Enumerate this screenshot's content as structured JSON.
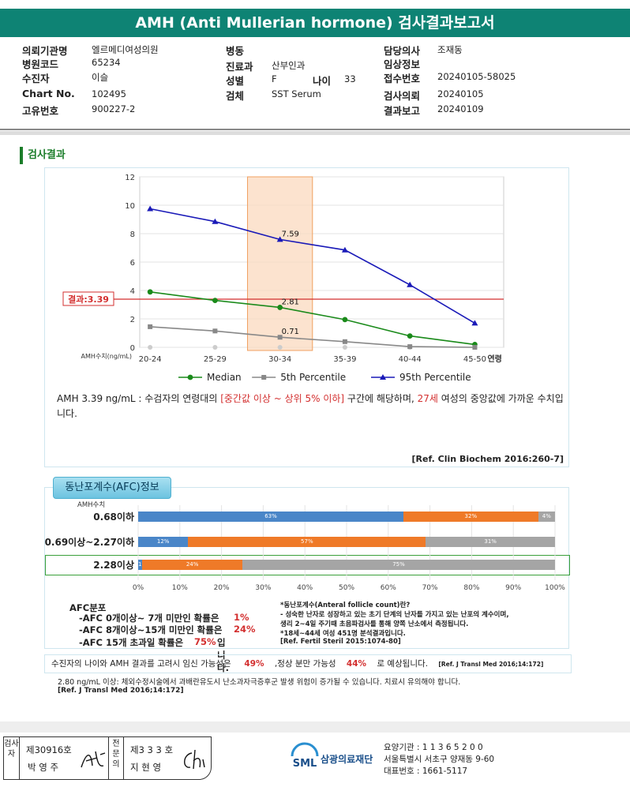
{
  "header": {
    "title": "AMH (Anti Mullerian hormone) 검사결과보고서"
  },
  "info": {
    "col1": [
      {
        "label": "의뢰기관명",
        "value": "엘르메디여성의원"
      },
      {
        "label": "병원코드",
        "value": "65234"
      },
      {
        "label": "수진자",
        "value": "이슬"
      },
      {
        "label": "Chart No.",
        "value": "102495"
      },
      {
        "label": "고유번호",
        "value": "900227-2"
      }
    ],
    "col2": [
      {
        "label": "병동",
        "value": ""
      },
      {
        "label": "진료과",
        "value": "산부인과"
      },
      {
        "label": "성별",
        "value": "F"
      },
      {
        "label": "검체",
        "value": "SST Serum"
      }
    ],
    "age": {
      "label": "나이",
      "value": "33"
    },
    "col3": [
      {
        "label": "담당의사",
        "value": "조재동"
      },
      {
        "label": "임상정보",
        "value": ""
      },
      {
        "label": "접수번호",
        "value": "20240105-58025"
      },
      {
        "label": "검사의뢰",
        "value": "20240105"
      },
      {
        "label": "결과보고",
        "value": "20240109"
      }
    ]
  },
  "section": {
    "title": "검사결과"
  },
  "chart_data": {
    "type": "line",
    "categories": [
      "20-24",
      "25-29",
      "30-34",
      "35-39",
      "40-44",
      "45-50"
    ],
    "x_unit_label": "AMH수치(ng/mL)",
    "x_end_label": "연령",
    "ylim": [
      0,
      12
    ],
    "yticks": [
      "0",
      "2",
      "4",
      "6",
      "8",
      "10",
      "12"
    ],
    "highlight_category": "30-34",
    "result": {
      "label": "결과:3.39",
      "value": 3.39
    },
    "series": [
      {
        "name": "Median",
        "color": "#1a8a1a",
        "marker": "circle",
        "values": [
          3.9,
          3.3,
          2.81,
          1.95,
          0.8,
          0.2
        ]
      },
      {
        "name": "5th Percentile",
        "color": "#888888",
        "marker": "square",
        "values": [
          1.45,
          1.15,
          0.71,
          0.4,
          0.05,
          0.0
        ]
      },
      {
        "name": "95th Percentile",
        "color": "#1a1ab8",
        "marker": "triangle",
        "values": [
          9.75,
          8.85,
          7.59,
          6.85,
          4.4,
          1.7
        ]
      }
    ],
    "point_labels": [
      {
        "series": 0,
        "index": 2,
        "text": "2.81"
      },
      {
        "series": 1,
        "index": 2,
        "text": "0.71"
      },
      {
        "series": 2,
        "index": 2,
        "text": "7.59"
      }
    ]
  },
  "comment": {
    "part1": "AMH  3.39 ng/mL : 수검자의 연령대의 ",
    "range": "[중간값 이상 ~ 상위 5% 이하]",
    "part2": "  구간에 해당하며, ",
    "age": "27세",
    "part3": " 여성의 중앙값에 가까운 수치입니다.",
    "ref": "[Ref. Clin Biochem 2016:260-7]"
  },
  "afc": {
    "tab": "동난포계수(AFC)정보",
    "head": "AMH수치",
    "colors": {
      "blue": "#4a86c8",
      "orange": "#ef7a28",
      "gray": "#a5a5a5"
    },
    "rows": [
      {
        "label": "0.68이하",
        "segs": [
          63,
          32,
          4
        ],
        "texts": [
          "63%",
          "32%",
          "4%"
        ]
      },
      {
        "label": "0.69이상~2.27이하",
        "segs": [
          12,
          57,
          31
        ],
        "texts": [
          "12%",
          "57%",
          "31%"
        ]
      },
      {
        "label": "2.28이상",
        "segs": [
          1,
          24,
          75
        ],
        "texts": [
          "1%",
          "24%",
          "75%"
        ]
      }
    ],
    "axis": [
      "0%",
      "10%",
      "20%",
      "30%",
      "40%",
      "50%",
      "60%",
      "70%",
      "80%",
      "90%",
      "100%"
    ],
    "dist_title": "AFC분포",
    "stats": [
      {
        "text": "-AFC  0개이상~ 7개 미만인 확률은",
        "pct": "1%"
      },
      {
        "text": "-AFC  8개이상~15개 미만인 확률은",
        "pct": "24%"
      },
      {
        "text": "-AFC  15개 초과일 확률은",
        "pct": "75%",
        "suffix": "입니다."
      }
    ],
    "note": [
      "*동난포계수(Anteral follicle count)란?",
      "- 성숙한 난자로 성장하고 있는 초기 단계의 난자를 가지고 있는 난포의 계수이며,",
      "   생리 2~4일 주기때 초음파검사를 통해 양쪽 난소에서 측정됩니다.",
      "*18세~44세 여성 451명 분석결과입니다.",
      "[Ref. Fertil Steril 2015:1074-80]"
    ]
  },
  "pregnancy": {
    "part1": "수진자의 나이와 AMH 결과를 고려시 임신 가능성은",
    "p1": "49%",
    "part2": ",정상 분만 가능성",
    "p2": "44%",
    "part3": "로 예상됩니다.",
    "ref": "[Ref. J Transl Med 2016;14:172]"
  },
  "ohss": {
    "text": "2.80  ng/mL  이상: 체외수정시술에서 과배란유도시 난소과자극증후군 발생 위험이 증가될 수 있습니다. 치료시 유의해야 합니다.",
    "ref": "[Ref. J Transl Med 2016;14:172]"
  },
  "signatures": {
    "inspector_label": "검사자",
    "inspector_no": "제30916호",
    "inspector_name": "박 영 주",
    "specialist_label": "전문의",
    "specialist_no": "제3 3 3 호",
    "specialist_name": "지 현 영"
  },
  "lab": {
    "logo": "SML",
    "name": "삼광의료재단",
    "code": "요양기관 : 1 1 3 6 5 2 0 0",
    "address": "서울특별시 서초구 양재동 9-60",
    "phone": "대표번호 : 1661-5117"
  }
}
